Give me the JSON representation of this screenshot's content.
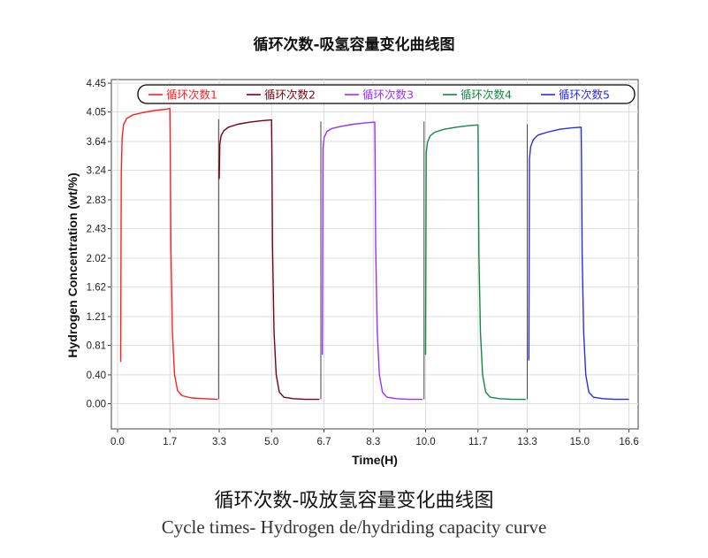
{
  "chart_data": {
    "type": "line",
    "title": "循环次数-吸氢容量变化曲线图",
    "xlabel": "Time(H)",
    "ylabel": "Hydrogen Concentration (wt/%)",
    "xlim": [
      -0.2,
      16.9
    ],
    "ylim": [
      -0.35,
      4.5
    ],
    "x_ticks": [
      "0.0",
      "1.7",
      "3.3",
      "5.0",
      "6.7",
      "8.3",
      "10.0",
      "11.7",
      "13.3",
      "15.0",
      "16.6"
    ],
    "y_ticks": [
      "4.45",
      "4.05",
      "3.64",
      "3.24",
      "2.83",
      "2.43",
      "2.02",
      "1.62",
      "1.21",
      "0.81",
      "0.40",
      "0.00"
    ],
    "grid": true,
    "legend_position": "top",
    "series": [
      {
        "name": "循环次数1",
        "color": "#ff2020",
        "x": [
          0.1,
          0.12,
          0.15,
          0.2,
          0.3,
          0.5,
          0.8,
          1.2,
          1.6,
          1.7,
          1.71,
          1.73,
          1.78,
          1.85,
          1.95,
          2.1,
          2.4,
          2.8,
          3.2,
          3.25
        ],
        "y": [
          0.58,
          3.2,
          3.7,
          3.88,
          3.96,
          4.01,
          4.04,
          4.07,
          4.09,
          4.1,
          3.6,
          2.2,
          1.0,
          0.4,
          0.18,
          0.11,
          0.08,
          0.07,
          0.06,
          0.06
        ]
      },
      {
        "name": "循环次数2",
        "color": "#7a0010",
        "x": [
          3.3,
          3.32,
          3.36,
          3.45,
          3.6,
          3.9,
          4.3,
          4.7,
          5.0,
          5.01,
          5.03,
          5.08,
          5.15,
          5.25,
          5.4,
          5.7,
          6.1,
          6.5,
          6.55
        ],
        "y": [
          3.12,
          3.6,
          3.72,
          3.79,
          3.84,
          3.88,
          3.91,
          3.93,
          3.94,
          3.5,
          2.2,
          1.0,
          0.4,
          0.16,
          0.09,
          0.07,
          0.06,
          0.06,
          0.06
        ]
      },
      {
        "name": "循环次数3",
        "color": "#9a30ff",
        "x": [
          6.65,
          6.67,
          6.71,
          6.8,
          6.95,
          7.25,
          7.65,
          8.05,
          8.35,
          8.36,
          8.38,
          8.43,
          8.5,
          8.6,
          8.75,
          9.05,
          9.45,
          9.85,
          9.9
        ],
        "y": [
          0.68,
          3.55,
          3.7,
          3.78,
          3.82,
          3.85,
          3.88,
          3.9,
          3.91,
          3.5,
          2.2,
          1.0,
          0.4,
          0.16,
          0.09,
          0.07,
          0.06,
          0.06,
          0.06
        ]
      },
      {
        "name": "循环次数4",
        "color": "#118844",
        "x": [
          10.0,
          10.02,
          10.06,
          10.15,
          10.3,
          10.6,
          11.0,
          11.4,
          11.7,
          11.71,
          11.73,
          11.78,
          11.85,
          11.95,
          12.1,
          12.4,
          12.8,
          13.2,
          13.25
        ],
        "y": [
          0.68,
          3.48,
          3.63,
          3.72,
          3.77,
          3.81,
          3.84,
          3.86,
          3.87,
          3.4,
          2.1,
          1.0,
          0.4,
          0.16,
          0.09,
          0.07,
          0.06,
          0.06,
          0.06
        ]
      },
      {
        "name": "循环次数5",
        "color": "#2a2aee",
        "x": [
          13.35,
          13.37,
          13.41,
          13.5,
          13.65,
          13.95,
          14.35,
          14.75,
          15.05,
          15.06,
          15.08,
          15.13,
          15.2,
          15.3,
          15.45,
          15.75,
          16.15,
          16.55,
          16.6
        ],
        "y": [
          0.6,
          3.4,
          3.57,
          3.67,
          3.73,
          3.77,
          3.81,
          3.83,
          3.84,
          3.4,
          2.1,
          1.0,
          0.4,
          0.16,
          0.09,
          0.07,
          0.06,
          0.06,
          0.06
        ]
      }
    ],
    "transitions": [
      {
        "x": 3.28,
        "y": [
          0.06,
          3.95
        ],
        "color": "#444444"
      },
      {
        "x": 6.6,
        "y": [
          0.06,
          3.92
        ],
        "color": "#444444"
      },
      {
        "x": 9.95,
        "y": [
          0.06,
          3.92
        ],
        "color": "#444444"
      },
      {
        "x": 13.3,
        "y": [
          0.06,
          3.88
        ],
        "color": "#444444"
      }
    ]
  },
  "caption": {
    "cn": "循环次数-吸放氢容量变化曲线图",
    "en": "Cycle times- Hydrogen de/hydriding capacity curve"
  }
}
